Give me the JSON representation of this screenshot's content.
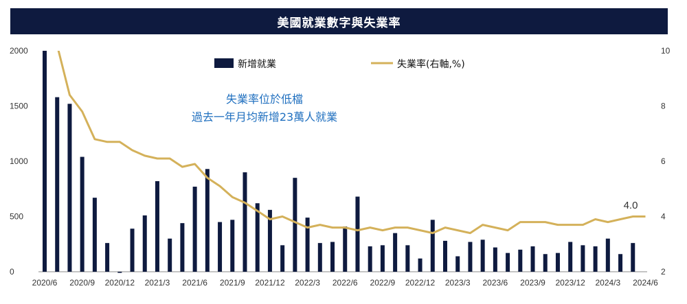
{
  "title": "美國就業數字與失業率",
  "chart_data": {
    "type": "bar+line",
    "title": "美國就業數字與失業率",
    "categories": [
      "2020/6",
      "2020/7",
      "2020/8",
      "2020/9",
      "2020/10",
      "2020/11",
      "2020/12",
      "2021/1",
      "2021/2",
      "2021/3",
      "2021/4",
      "2021/5",
      "2021/6",
      "2021/7",
      "2021/8",
      "2021/9",
      "2021/10",
      "2021/11",
      "2021/12",
      "2022/1",
      "2022/2",
      "2022/3",
      "2022/4",
      "2022/5",
      "2022/6",
      "2022/7",
      "2022/8",
      "2022/9",
      "2022/10",
      "2022/11",
      "2022/12",
      "2023/1",
      "2023/2",
      "2023/3",
      "2023/4",
      "2023/5",
      "2023/6",
      "2023/7",
      "2023/8",
      "2023/9",
      "2023/10",
      "2023/11",
      "2023/12",
      "2024/1",
      "2024/2",
      "2024/3",
      "2024/4",
      "2024/5",
      "2024/6"
    ],
    "x_tick_labels": [
      "2020/6",
      "2020/9",
      "2020/12",
      "2021/3",
      "2021/6",
      "2021/9",
      "2021/12",
      "2022/3",
      "2022/6",
      "2022/9",
      "2022/12",
      "2023/3",
      "2023/6",
      "2023/9",
      "2023/12",
      "2024/3",
      "2024/6"
    ],
    "series": [
      {
        "name": "新增就業",
        "type": "bar",
        "axis": "left",
        "color": "#0e1a3f",
        "values": [
          2000,
          1580,
          1520,
          1040,
          670,
          260,
          -10,
          390,
          510,
          820,
          300,
          440,
          770,
          930,
          450,
          470,
          900,
          620,
          560,
          240,
          850,
          490,
          260,
          270,
          410,
          680,
          230,
          240,
          350,
          240,
          120,
          470,
          280,
          140,
          270,
          290,
          220,
          170,
          200,
          230,
          160,
          170,
          270,
          240,
          230,
          300,
          160,
          260,
          0
        ]
      },
      {
        "name": "失業率(右軸,%)",
        "type": "line",
        "axis": "right",
        "color": "#d4b15a",
        "values": [
          11.0,
          10.2,
          8.4,
          7.8,
          6.8,
          6.7,
          6.7,
          6.4,
          6.2,
          6.1,
          6.1,
          5.8,
          5.9,
          5.4,
          5.1,
          4.7,
          4.5,
          4.2,
          3.9,
          4.0,
          3.8,
          3.6,
          3.7,
          3.6,
          3.6,
          3.5,
          3.6,
          3.5,
          3.6,
          3.6,
          3.5,
          3.4,
          3.6,
          3.5,
          3.4,
          3.7,
          3.6,
          3.5,
          3.8,
          3.8,
          3.8,
          3.7,
          3.7,
          3.7,
          3.9,
          3.8,
          3.9,
          4.0,
          4.0
        ]
      }
    ],
    "y_left": {
      "min": 0,
      "max": 2000,
      "ticks": [
        0,
        500,
        1000,
        1500,
        2000
      ]
    },
    "y_right": {
      "min": 2,
      "max": 10,
      "ticks": [
        2,
        4,
        6,
        8,
        10
      ]
    },
    "annotations": [
      "失業率位於低檔",
      "過去一年月均新增23萬人就業"
    ],
    "end_label": "4.0",
    "legend_position": "top-center",
    "grid": false
  }
}
